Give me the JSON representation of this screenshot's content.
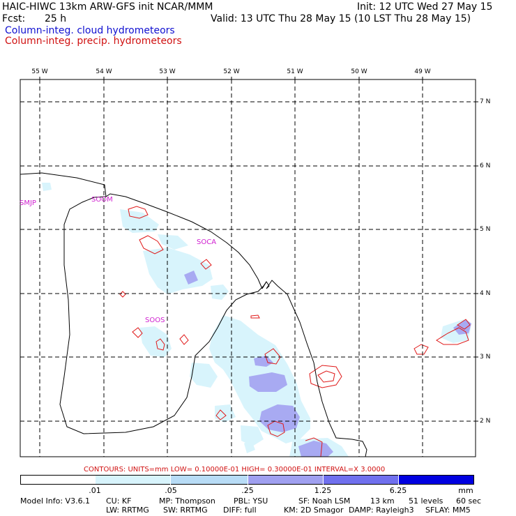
{
  "header": {
    "title_left": "HAIC-HIWC 13km ARW-GFS init   NCAR/MMM",
    "init": "Init: 12 UTC Wed 27 May 15",
    "fcst_label": "Fcst:",
    "fcst_value": "25 h",
    "valid": "Valid: 13 UTC Thu 28 May 15 (10 LST Thu 28 May 15)",
    "field1": "Column-integ. cloud hydrometeors",
    "field2": "Column-integ. precip. hydrometeors"
  },
  "axes": {
    "lon_labels": [
      "55 W",
      "54 W",
      "53 W",
      "52 W",
      "51 W",
      "50 W",
      "49 W"
    ],
    "lat_labels": [
      "7 N",
      "6 N",
      "5 N",
      "4 N",
      "3 N",
      "2 N"
    ]
  },
  "stations": [
    "SMJP",
    "SOOM",
    "SOCA",
    "SOOS"
  ],
  "contour_info": "CONTOURS:  UNITS=mm  LOW= 0.10000E-01  HIGH= 0.30000E-01  INTERVAL=X  3.0000",
  "colorbar": {
    "ticks": [
      ".01",
      ".05",
      ".25",
      "1.25",
      "6.25"
    ],
    "units": "mm",
    "colors": [
      "#ffffff",
      "#d8f4fc",
      "#b8dcf6",
      "#a0a0f0",
      "#7070ee",
      "#3030f0",
      "#0000e0"
    ]
  },
  "model_info": {
    "line1": [
      "Model Info: V3.6.1",
      "CU: KF",
      "MP: Thompson",
      "PBL: YSU",
      "SF: Noah LSM",
      "13 km",
      "51 levels",
      "60 sec"
    ],
    "line2": [
      "LW: RRTMG",
      "SW: RRTMG",
      "DIFF: full",
      "KM: 2D Smagor",
      "DAMP: Rayleigh3",
      "SFLAY: MM5"
    ]
  }
}
